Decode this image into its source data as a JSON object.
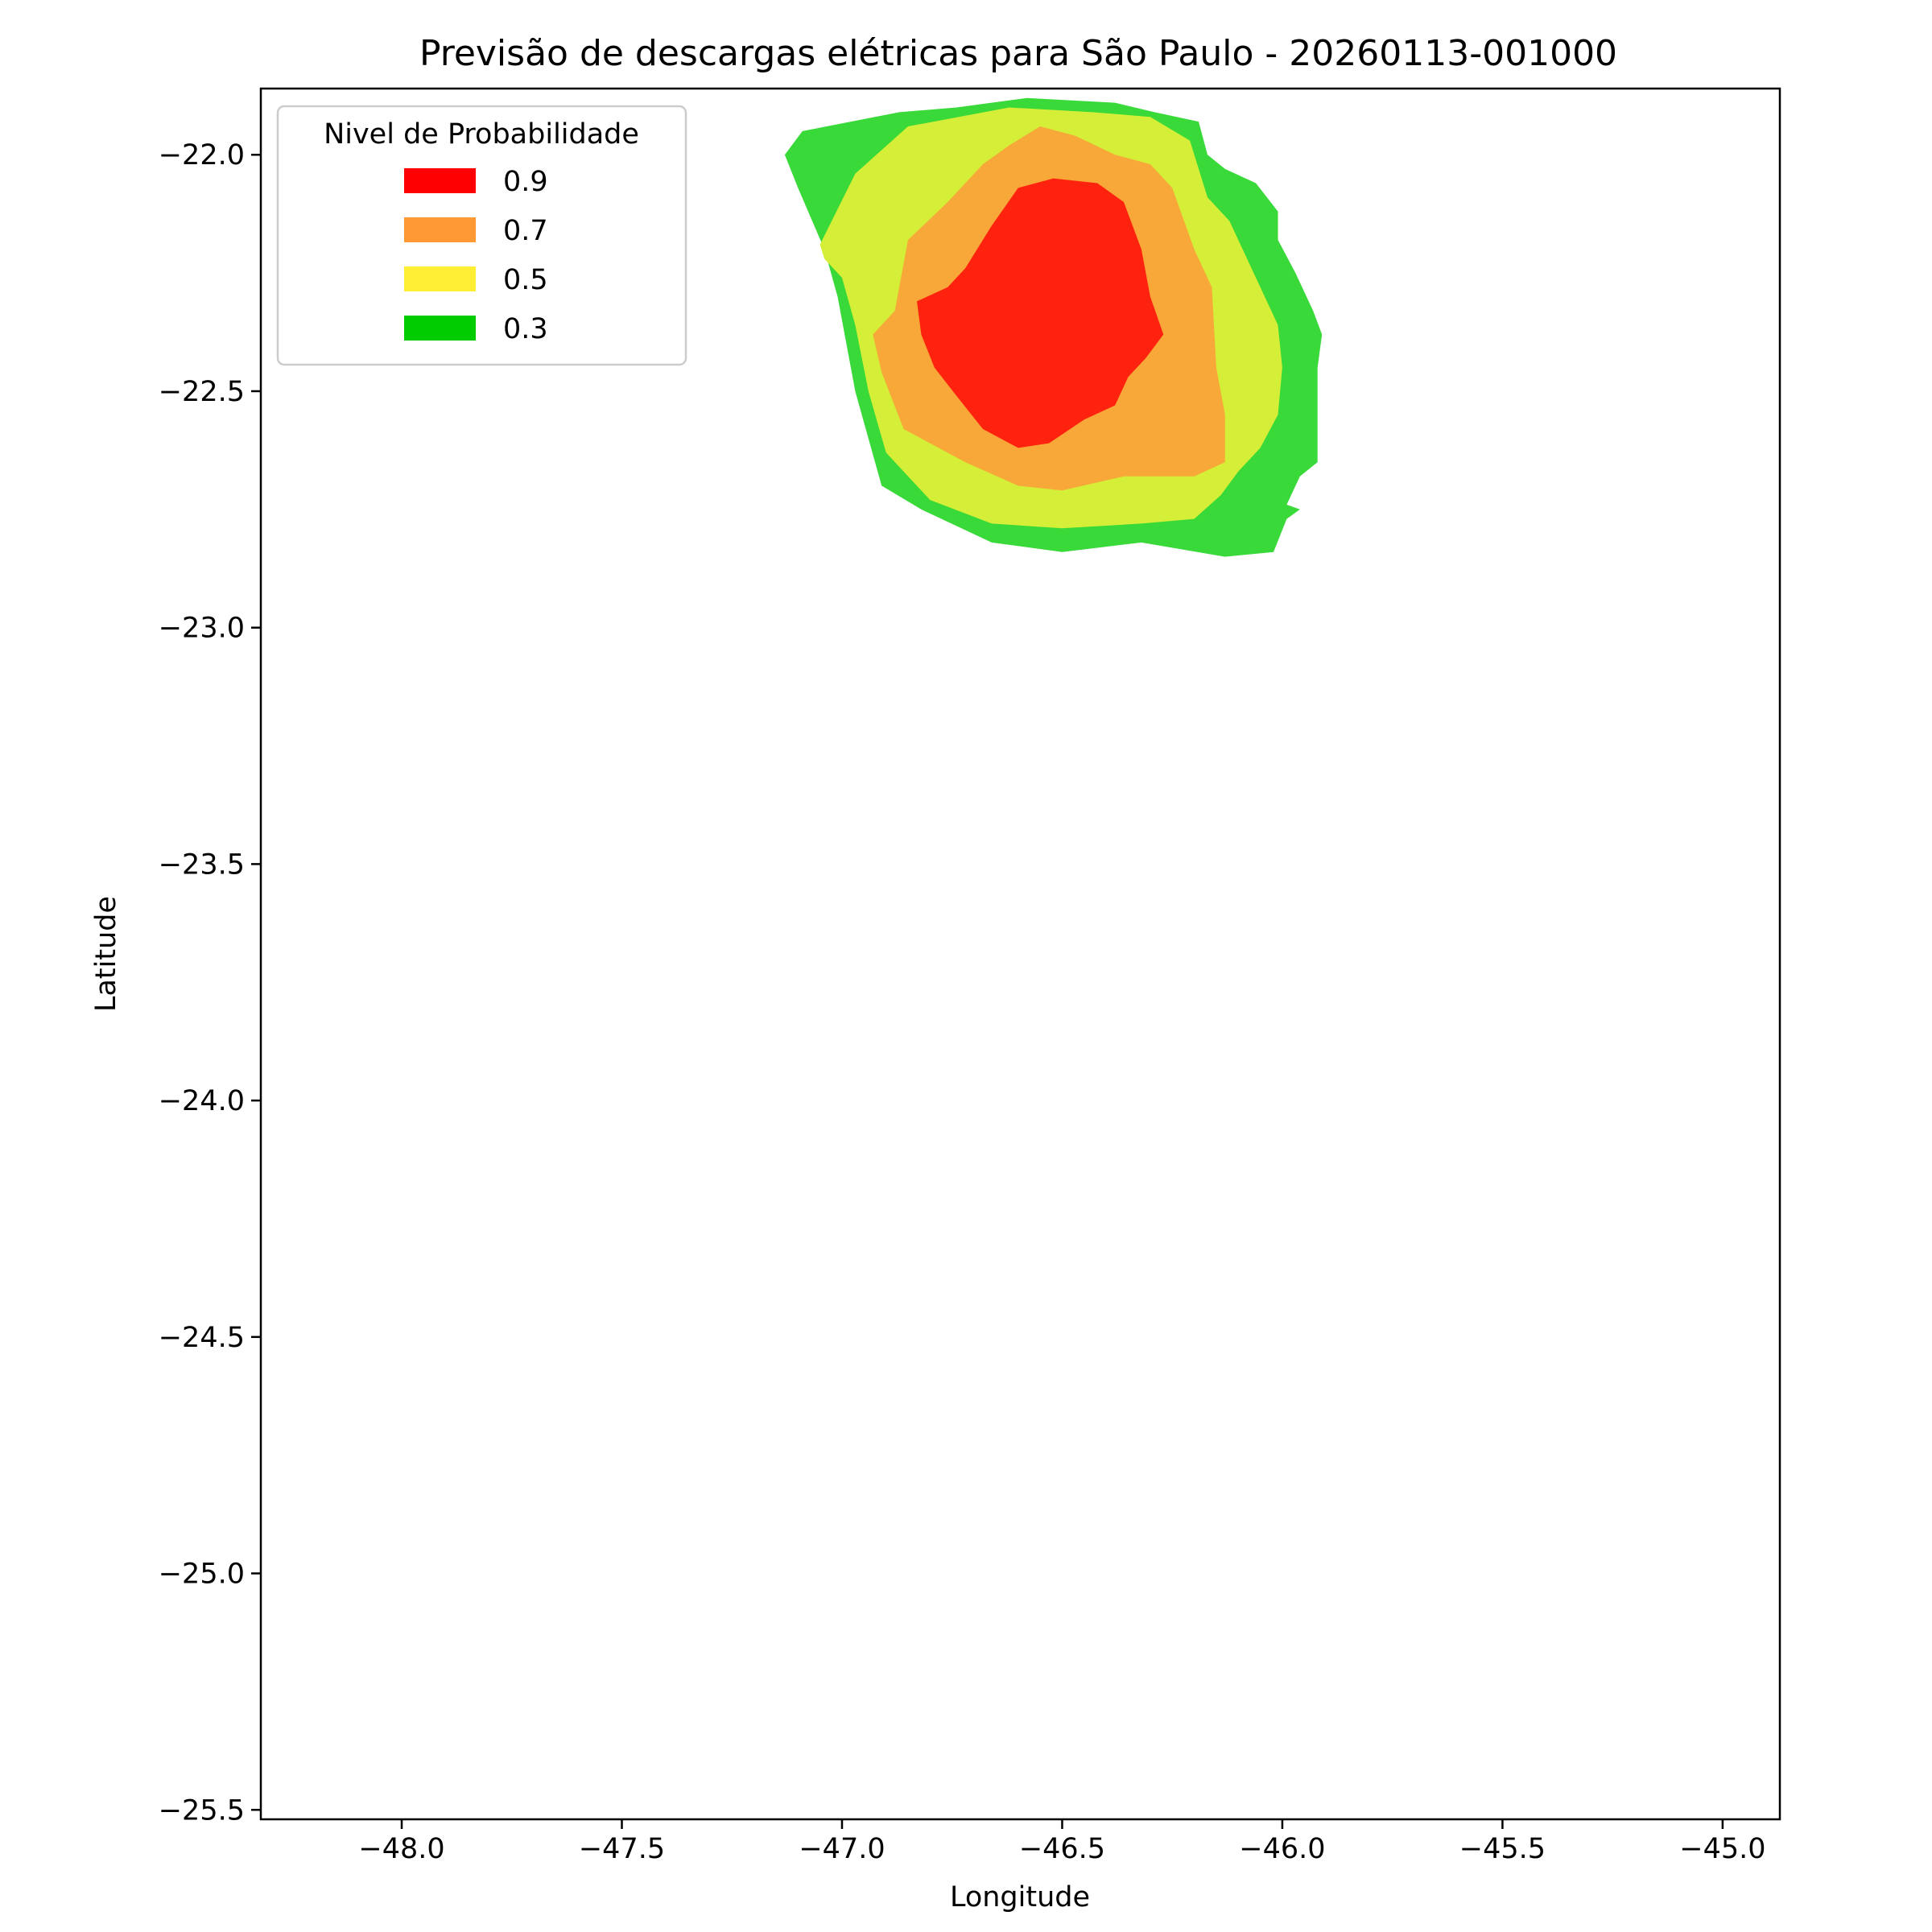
{
  "chart_data": {
    "type": "contourf",
    "title": "Previsão de descargas elétricas para São Paulo - 20260113-001000",
    "xlabel": "Longitude",
    "ylabel": "Latitude",
    "xlim": [
      -48.32,
      -44.87
    ],
    "ylim": [
      -25.52,
      -21.86
    ],
    "xticks": [
      -48.0,
      -47.5,
      -47.0,
      -46.5,
      -46.0,
      -45.5,
      -45.0
    ],
    "xtick_labels": [
      "−48.0",
      "−47.5",
      "−47.0",
      "−46.5",
      "−46.0",
      "−45.5",
      "−45.0"
    ],
    "yticks": [
      -22.0,
      -22.5,
      -23.0,
      -23.5,
      -24.0,
      -24.5,
      -25.0,
      -25.5
    ],
    "ytick_labels": [
      "−22.0",
      "−22.5",
      "−23.0",
      "−23.5",
      "−24.0",
      "−24.5",
      "−25.0",
      "−25.5"
    ],
    "legend": {
      "title": "Nivel de Probabilidade",
      "location": "upper left",
      "entries": [
        {
          "label": "0.9",
          "color": "#ff0000"
        },
        {
          "label": "0.7",
          "color": "#ff9933"
        },
        {
          "label": "0.5",
          "color": "#ffee33"
        },
        {
          "label": "0.3",
          "color": "#00cc00"
        }
      ]
    },
    "levels": [
      {
        "level": 0.3,
        "color": "#38d938",
        "polygon": [
          [
            -47.13,
            -22.0
          ],
          [
            -47.09,
            -21.95
          ],
          [
            -46.87,
            -21.91
          ],
          [
            -46.74,
            -21.9
          ],
          [
            -46.58,
            -21.88
          ],
          [
            -46.38,
            -21.89
          ],
          [
            -46.29,
            -21.91
          ],
          [
            -46.19,
            -21.93
          ],
          [
            -46.17,
            -22.0
          ],
          [
            -46.13,
            -22.03
          ],
          [
            -46.06,
            -22.06
          ],
          [
            -46.01,
            -22.12
          ],
          [
            -46.01,
            -22.18
          ],
          [
            -45.97,
            -22.25
          ],
          [
            -45.93,
            -22.33
          ],
          [
            -45.91,
            -22.38
          ],
          [
            -45.92,
            -22.45
          ],
          [
            -45.92,
            -22.53
          ],
          [
            -45.92,
            -22.65
          ],
          [
            -45.96,
            -22.68
          ],
          [
            -45.99,
            -22.74
          ],
          [
            -45.96,
            -22.75
          ],
          [
            -45.99,
            -22.77
          ],
          [
            -46.02,
            -22.84
          ],
          [
            -46.13,
            -22.85
          ],
          [
            -46.32,
            -22.82
          ],
          [
            -46.5,
            -22.84
          ],
          [
            -46.66,
            -22.82
          ],
          [
            -46.82,
            -22.75
          ],
          [
            -46.91,
            -22.7
          ],
          [
            -46.94,
            -22.6
          ],
          [
            -46.97,
            -22.5
          ],
          [
            -47.01,
            -22.3
          ],
          [
            -47.04,
            -22.2
          ],
          [
            -47.1,
            -22.07
          ]
        ]
      },
      {
        "level": 0.5,
        "color": "#d5ee38",
        "polygon": [
          [
            -47.05,
            -22.19
          ],
          [
            -46.97,
            -22.04
          ],
          [
            -46.85,
            -21.94
          ],
          [
            -46.62,
            -21.9
          ],
          [
            -46.43,
            -21.91
          ],
          [
            -46.3,
            -21.92
          ],
          [
            -46.21,
            -21.97
          ],
          [
            -46.17,
            -22.09
          ],
          [
            -46.12,
            -22.14
          ],
          [
            -46.09,
            -22.2
          ],
          [
            -46.05,
            -22.28
          ],
          [
            -46.01,
            -22.36
          ],
          [
            -46.0,
            -22.45
          ],
          [
            -46.01,
            -22.55
          ],
          [
            -46.05,
            -22.62
          ],
          [
            -46.1,
            -22.67
          ],
          [
            -46.14,
            -22.72
          ],
          [
            -46.2,
            -22.77
          ],
          [
            -46.32,
            -22.78
          ],
          [
            -46.5,
            -22.79
          ],
          [
            -46.66,
            -22.78
          ],
          [
            -46.8,
            -22.73
          ],
          [
            -46.9,
            -22.63
          ],
          [
            -46.94,
            -22.5
          ],
          [
            -46.97,
            -22.36
          ],
          [
            -47.0,
            -22.26
          ],
          [
            -47.04,
            -22.22
          ]
        ]
      },
      {
        "level": 0.7,
        "color": "#f7a838",
        "polygon": [
          [
            -46.88,
            -22.33
          ],
          [
            -46.85,
            -22.18
          ],
          [
            -46.76,
            -22.1
          ],
          [
            -46.68,
            -22.02
          ],
          [
            -46.62,
            -21.98
          ],
          [
            -46.55,
            -21.94
          ],
          [
            -46.47,
            -21.96
          ],
          [
            -46.38,
            -22.0
          ],
          [
            -46.3,
            -22.02
          ],
          [
            -46.25,
            -22.07
          ],
          [
            -46.2,
            -22.2
          ],
          [
            -46.16,
            -22.28
          ],
          [
            -46.15,
            -22.45
          ],
          [
            -46.13,
            -22.55
          ],
          [
            -46.13,
            -22.65
          ],
          [
            -46.2,
            -22.68
          ],
          [
            -46.36,
            -22.68
          ],
          [
            -46.5,
            -22.71
          ],
          [
            -46.6,
            -22.7
          ],
          [
            -46.72,
            -22.65
          ],
          [
            -46.86,
            -22.58
          ],
          [
            -46.91,
            -22.46
          ],
          [
            -46.93,
            -22.38
          ]
        ]
      },
      {
        "level": 0.9,
        "color": "#ff230f",
        "polygon": [
          [
            -46.83,
            -22.31
          ],
          [
            -46.76,
            -22.28
          ],
          [
            -46.72,
            -22.24
          ],
          [
            -46.66,
            -22.15
          ],
          [
            -46.6,
            -22.07
          ],
          [
            -46.52,
            -22.05
          ],
          [
            -46.42,
            -22.06
          ],
          [
            -46.36,
            -22.1
          ],
          [
            -46.32,
            -22.2
          ],
          [
            -46.3,
            -22.3
          ],
          [
            -46.27,
            -22.38
          ],
          [
            -46.31,
            -22.43
          ],
          [
            -46.35,
            -22.47
          ],
          [
            -46.38,
            -22.53
          ],
          [
            -46.45,
            -22.56
          ],
          [
            -46.53,
            -22.61
          ],
          [
            -46.6,
            -22.62
          ],
          [
            -46.68,
            -22.58
          ],
          [
            -46.74,
            -22.51
          ],
          [
            -46.79,
            -22.45
          ],
          [
            -46.82,
            -22.38
          ]
        ]
      }
    ]
  }
}
